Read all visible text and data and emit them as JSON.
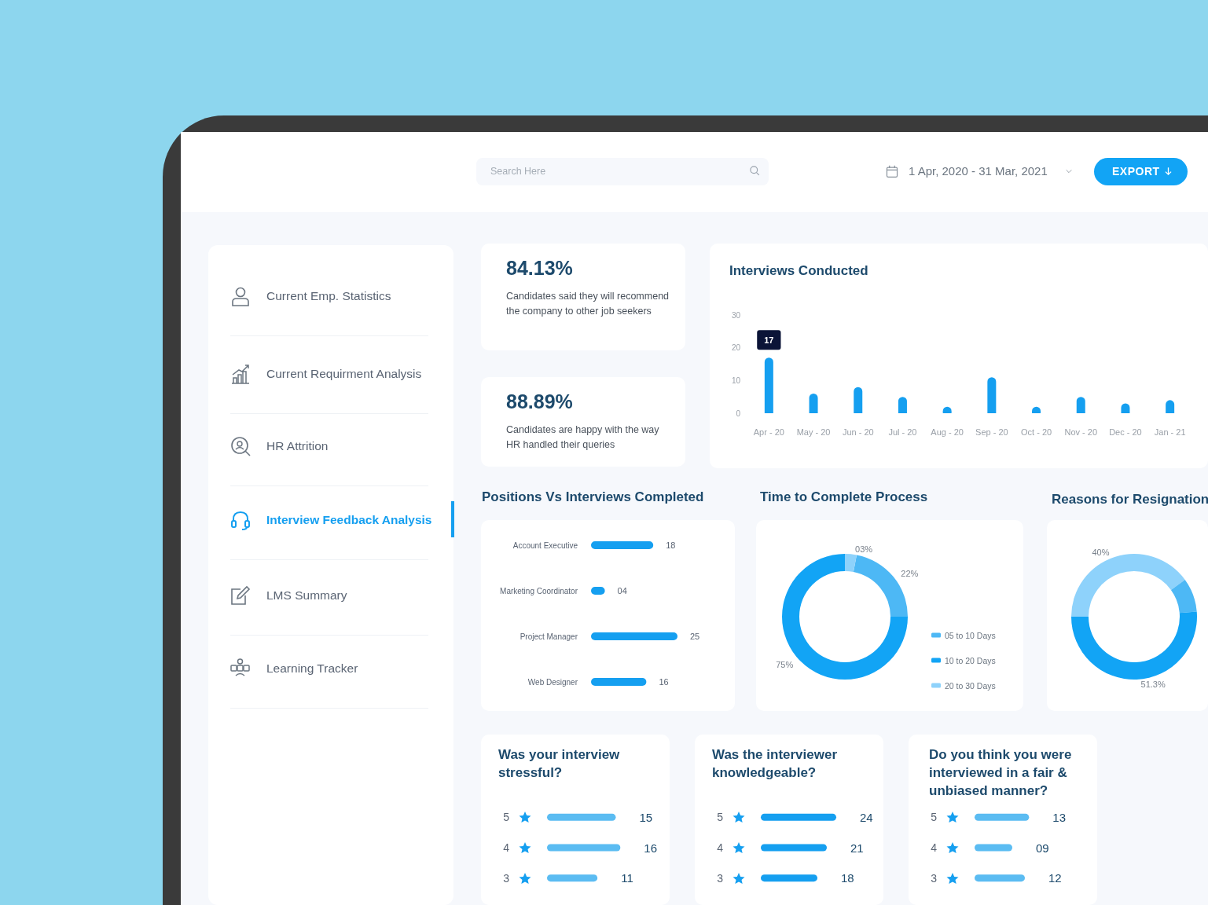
{
  "chart_data": [
    {
      "type": "other",
      "annotations": [
        "Search Here",
        "1 Apr, 2020 - 31 Mar, 2021",
        "EXPORT"
      ]
    },
    {
      "type": "other",
      "annotations": [
        "Current Emp. Statistics",
        "Current Requirment Analysis",
        "HR Attrition",
        "Interview Feedback Analysis",
        "LMS Summary",
        "Learning Tracker"
      ]
    },
    {
      "type": "other",
      "title": "84.13%",
      "annotations": [
        "Candidates said they will recommend the company to other job seekers"
      ]
    },
    {
      "type": "other",
      "title": "88.89%",
      "annotations": [
        "Candidates are happy with the way HR handled their queries"
      ]
    },
    {
      "type": "bar",
      "title": "Interviews Conducted",
      "categories": [
        "Apr - 20",
        "May - 20",
        "Jun - 20",
        "Jul - 20",
        "Aug - 20",
        "Sep - 20",
        "Oct - 20",
        "Nov - 20",
        "Dec - 20",
        "Jan - 21"
      ],
      "values": [
        17,
        6,
        8,
        5,
        2,
        11,
        2,
        5,
        3,
        4
      ],
      "color": "#159ff0",
      "value_labels": [
        "17",
        null,
        null,
        null,
        null,
        null,
        null,
        null,
        null,
        null
      ],
      "ylim": [
        0,
        30
      ],
      "yticks": [
        0,
        10,
        20,
        30
      ]
    },
    {
      "type": "bar",
      "title": "Positions Vs Interviews Completed",
      "orientation": "horizontal",
      "categories": [
        "Account Executive",
        "Marketing Coordinator",
        "Project Manager",
        "Web Designer"
      ],
      "values": [
        18,
        4,
        25,
        16
      ],
      "value_labels": [
        "18",
        "04",
        "25",
        "16"
      ],
      "color": "#159ff0",
      "tick_labels": "y"
    },
    {
      "type": "donut",
      "title": "Time to Complete Process",
      "categories": [
        "05 to 10 Days",
        "10 to 20 Days",
        "20 to 30 Days"
      ],
      "values": [
        22,
        75,
        3
      ],
      "value_labels": [
        "22%",
        "75%",
        "03%"
      ],
      "colors": [
        "#4db8f5",
        "#12a4f5",
        "#8ed2fb"
      ],
      "legend": "right"
    },
    {
      "type": "donut",
      "title": "Reasons for Resignation",
      "categories": [
        null,
        null,
        null
      ],
      "values": [
        40,
        8.7,
        51.3
      ],
      "value_labels": [
        "40%",
        null,
        "51.3%"
      ],
      "colors": [
        "#8ed2fb",
        "#4db8f5",
        "#12a4f5"
      ]
    },
    {
      "type": "bar",
      "title": "Was your interview stressful?",
      "orientation": "horizontal",
      "categories": [
        "5",
        "4",
        "3"
      ],
      "values": [
        15,
        16,
        11
      ],
      "value_labels": [
        "15",
        "16",
        "11"
      ],
      "color": "#5bbcf2",
      "tick_labels": "y"
    },
    {
      "type": "bar",
      "title": "Was the interviewer knowledgeable?",
      "orientation": "horizontal",
      "categories": [
        "5",
        "4",
        "3"
      ],
      "values": [
        24,
        21,
        18
      ],
      "value_labels": [
        "24",
        "21",
        "18"
      ],
      "color": "#159ff0",
      "tick_labels": "y"
    },
    {
      "type": "bar",
      "title": "Do you think you were interviewed in a fair & unbiased manner?",
      "orientation": "horizontal",
      "categories": [
        "5",
        "4",
        "3"
      ],
      "values": [
        13,
        9,
        12
      ],
      "value_labels": [
        "13",
        "09",
        "12"
      ],
      "color": "#5bbcf2",
      "tick_labels": "y"
    }
  ]
}
